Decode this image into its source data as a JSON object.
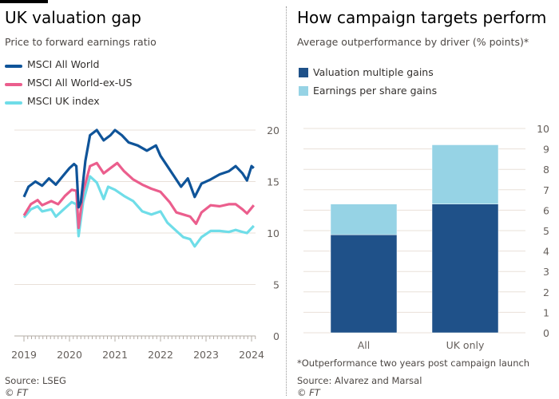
{
  "left": {
    "title": "UK valuation gap",
    "subtitle": "Price to forward earnings ratio",
    "source": "Source: LSEG",
    "credit": "© FT"
  },
  "right": {
    "title": "How campaign targets perform",
    "subtitle": "Average outperformance by driver (% points)*",
    "footnote": "*Outperformance two years post campaign launch",
    "source": "Source: Alvarez and Marsal",
    "credit": "© FT"
  },
  "chart_data": [
    {
      "type": "line",
      "title": "UK valuation gap",
      "subtitle": "Price to forward earnings ratio",
      "ylim": [
        0,
        20
      ],
      "xlim": [
        2019,
        2024.1
      ],
      "yticks": [
        "0",
        "5",
        "10",
        "15",
        "20"
      ],
      "xticks": [
        "2019",
        "2020",
        "2021",
        "2022",
        "2023",
        "2024"
      ],
      "legend": "top-left",
      "grid": true,
      "series": [
        {
          "name": "MSCI All World",
          "color": "#0f5499",
          "x": [
            2019.0,
            2019.1,
            2019.25,
            2019.4,
            2019.55,
            2019.7,
            2019.85,
            2020.0,
            2020.1,
            2020.15,
            2020.2,
            2020.25,
            2020.35,
            2020.45,
            2020.6,
            2020.75,
            2020.9,
            2021.0,
            2021.15,
            2021.3,
            2021.5,
            2021.7,
            2021.9,
            2022.0,
            2022.15,
            2022.3,
            2022.45,
            2022.6,
            2022.75,
            2022.9,
            2023.1,
            2023.3,
            2023.5,
            2023.65,
            2023.8,
            2023.9,
            2024.0,
            2024.05
          ],
          "y": [
            13.5,
            14.5,
            15.0,
            14.6,
            15.3,
            14.7,
            15.5,
            16.3,
            16.7,
            16.5,
            12.5,
            13.0,
            17.0,
            19.5,
            20.0,
            19.0,
            19.5,
            20.0,
            19.5,
            18.8,
            18.5,
            18.0,
            18.5,
            17.5,
            16.5,
            15.5,
            14.5,
            15.3,
            13.5,
            14.8,
            15.2,
            15.7,
            16.0,
            16.5,
            15.8,
            15.1,
            16.5,
            16.3
          ]
        },
        {
          "name": "MSCI All World-ex-US",
          "color": "#eb5e8d",
          "x": [
            2019.0,
            2019.15,
            2019.3,
            2019.4,
            2019.6,
            2019.75,
            2019.9,
            2020.05,
            2020.15,
            2020.2,
            2020.3,
            2020.45,
            2020.6,
            2020.75,
            2020.9,
            2021.05,
            2021.2,
            2021.4,
            2021.6,
            2021.8,
            2022.0,
            2022.2,
            2022.35,
            2022.5,
            2022.65,
            2022.78,
            2022.9,
            2023.1,
            2023.3,
            2023.5,
            2023.65,
            2023.8,
            2023.9,
            2024.05
          ],
          "y": [
            11.7,
            12.8,
            13.2,
            12.7,
            13.1,
            12.8,
            13.6,
            14.2,
            14.1,
            10.5,
            14.0,
            16.5,
            16.8,
            15.8,
            16.3,
            16.8,
            16.0,
            15.2,
            14.7,
            14.3,
            14.0,
            13.0,
            12.0,
            11.8,
            11.6,
            10.9,
            12.0,
            12.7,
            12.6,
            12.8,
            12.8,
            12.3,
            11.9,
            12.7
          ]
        },
        {
          "name": "MSCI UK index",
          "color": "#6fdde8",
          "x": [
            2019.0,
            2019.15,
            2019.3,
            2019.4,
            2019.6,
            2019.7,
            2019.85,
            2020.05,
            2020.15,
            2020.2,
            2020.3,
            2020.45,
            2020.6,
            2020.75,
            2020.85,
            2021.0,
            2021.2,
            2021.4,
            2021.6,
            2021.8,
            2022.0,
            2022.15,
            2022.35,
            2022.5,
            2022.65,
            2022.75,
            2022.9,
            2023.1,
            2023.3,
            2023.5,
            2023.65,
            2023.8,
            2023.9,
            2024.05
          ],
          "y": [
            11.5,
            12.3,
            12.6,
            12.1,
            12.3,
            11.6,
            12.2,
            13.0,
            12.8,
            9.7,
            13.0,
            15.5,
            14.9,
            13.3,
            14.5,
            14.2,
            13.6,
            13.1,
            12.1,
            11.8,
            12.1,
            11.0,
            10.2,
            9.6,
            9.4,
            8.7,
            9.6,
            10.2,
            10.2,
            10.1,
            10.3,
            10.1,
            10.0,
            10.7
          ]
        }
      ]
    },
    {
      "type": "bar",
      "stacked": true,
      "title": "How campaign targets perform",
      "subtitle": "Average outperformance by driver (% points)*",
      "ylim": [
        0,
        10
      ],
      "yticks": [
        "0",
        "1",
        "2",
        "3",
        "4",
        "5",
        "6",
        "7",
        "8",
        "9",
        "10"
      ],
      "categories": [
        "All",
        "UK only"
      ],
      "legend": "top-left",
      "grid": true,
      "series": [
        {
          "name": "Valuation multiple gains",
          "color": "#1f5189",
          "values": [
            4.8,
            6.3
          ]
        },
        {
          "name": "Earnings per share gains",
          "color": "#96d3e5",
          "values": [
            1.5,
            2.9
          ]
        }
      ]
    }
  ]
}
